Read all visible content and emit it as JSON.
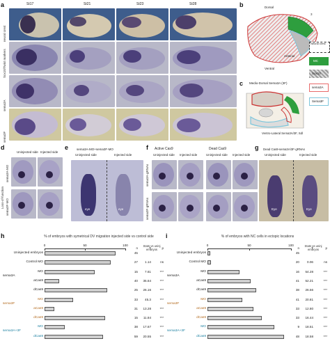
{
  "panel_letters": [
    "a",
    "b",
    "c",
    "d",
    "e",
    "f",
    "g",
    "h",
    "i"
  ],
  "panel_a": {
    "stages": [
      "St17",
      "St21",
      "St23",
      "St28"
    ],
    "rows": [
      "neural crest",
      "Sox10/Twist markers",
      "sema3A",
      "sema3F"
    ]
  },
  "panel_b": {
    "dorsal": "Dorsal",
    "ventral": "Ventral",
    "anterior": "Anterior",
    "legend": [
      {
        "label": "Neural crest",
        "color": "#ffffff"
      },
      {
        "label": "MC",
        "color": "#2e9e3e"
      },
      {
        "label": "Sox10",
        "color": "#9c9c9c"
      },
      {
        "label": "sema3A",
        "color": "#e86a6a"
      },
      {
        "label": "Sema3F",
        "color": "#7ec6dc"
      }
    ]
  },
  "panel_c": {
    "top_label": "Medio-Dorsal Sema3A (3F)",
    "bottom_label": "Ventro-Lateral Sema3A/3F, Sdl"
  },
  "panel_d": {
    "headers": [
      "Uninjected side",
      "Injected side"
    ],
    "row_group": "Loss-of-function",
    "rows": [
      "sema3A-MO",
      "sema3F-MO"
    ]
  },
  "panel_e": {
    "title": "sema3A-MO+sema3F-MO",
    "headers": [
      "Uninjected side",
      "Injected side"
    ],
    "eye": "eye"
  },
  "panel_f": {
    "groups": [
      "Active Cas9",
      "Dead Cas9"
    ],
    "headers": [
      "Uninjected side",
      "Injected side",
      "Uninjected side",
      "Injected side"
    ],
    "rows": [
      "sema3A-gRNAs",
      "sema3F-gRNAs"
    ]
  },
  "panel_g": {
    "title": "Dead Cas9-sema3A/3F-gRNAs",
    "headers": [
      "Uninjected side",
      "Injected side"
    ],
    "eye": "Eye"
  },
  "chart_data": [
    {
      "type": "bar",
      "title": "% of embryos with symetrical DV migration injected side vs control side",
      "xlim": [
        0,
        100
      ],
      "ticks": [
        0,
        50,
        100
      ],
      "stats_header": "Stats vs uninj embryos",
      "columns": [
        "n",
        "T",
        "p"
      ],
      "categories": [
        "Uninjected embryos",
        "Control MO",
        "MO",
        "aCas9",
        "dCas9",
        "MO",
        "aCas9",
        "dCas9",
        "MO",
        "dCas9"
      ],
      "groups": [
        "",
        "",
        "sema3A",
        "sema3A",
        "sema3A",
        "sema3F",
        "sema3F",
        "sema3F",
        "sema3A+3F",
        "sema3A+3F"
      ],
      "values": [
        88,
        82,
        62,
        18,
        78,
        35,
        12,
        75,
        25,
        72
      ],
      "n": [
        "45",
        "27",
        "15",
        "40",
        "25",
        "33",
        "31",
        "15",
        "38",
        "59"
      ],
      "T": [
        "",
        "1.14",
        "7.61",
        "35.64",
        "26.16",
        "45.3",
        "13.28",
        "11.84",
        "17.67",
        "20.55"
      ],
      "p": [
        "",
        "ns",
        "***",
        "***",
        "***",
        "***",
        "***",
        "***",
        "***",
        "***"
      ]
    },
    {
      "type": "bar",
      "title": "% of embryos with NC cells in ectopic locations",
      "xlim": [
        0,
        100
      ],
      "ticks": [
        0,
        50,
        100
      ],
      "stats_header": "Stats vs uninj embryos",
      "columns": [
        "n",
        "T",
        "p"
      ],
      "categories": [
        "Uninjected embryos",
        "Control MO",
        "MO",
        "aCas9",
        "dCas9",
        "MO",
        "aCas9",
        "dCas9",
        "MO",
        "dCas9"
      ],
      "groups": [
        "",
        "",
        "sema3A",
        "sema3A",
        "sema3A",
        "sema3F",
        "sema3F",
        "sema3F",
        "sema3A+3F",
        "sema3A+3F"
      ],
      "values": [
        3,
        4,
        38,
        52,
        58,
        42,
        55,
        65,
        80,
        92
      ],
      "n": [
        "45",
        "20",
        "16",
        "41",
        "38",
        "41",
        "33",
        "33",
        "9",
        "48"
      ],
      "T": [
        "",
        "0.06",
        "54.28",
        "52.21",
        "26.56",
        "20.81",
        "12.80",
        "16.44",
        "18.51",
        "18.58"
      ],
      "p": [
        "",
        "ns",
        "***",
        "***",
        "***",
        "***",
        "***",
        "***",
        "***",
        "***"
      ]
    }
  ]
}
